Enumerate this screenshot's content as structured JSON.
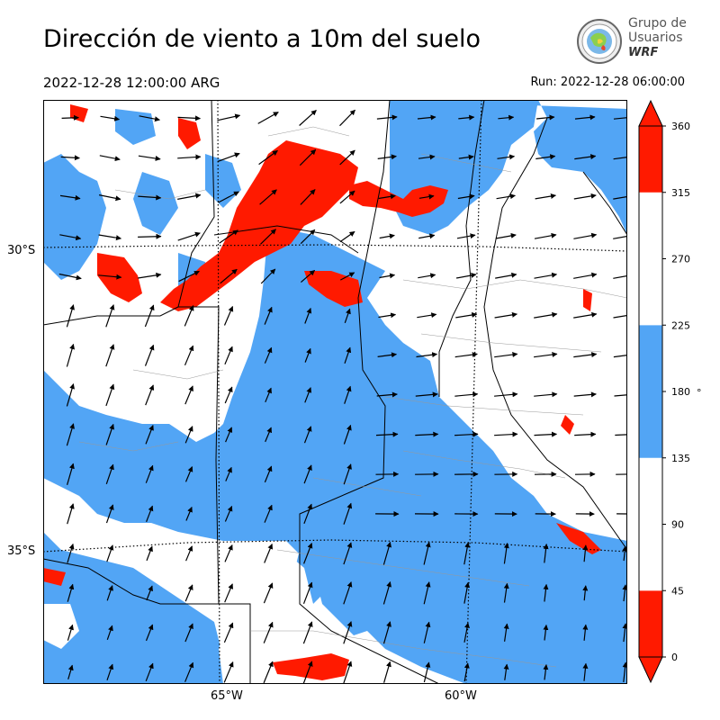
{
  "header": {
    "title": "Dirección de viento a 10m del suelo",
    "valid_time": "2022-12-28 12:00:00 ARG",
    "run_time": "Run: 2022-12-28 06:00:00"
  },
  "logo": {
    "line1": "Grupo de",
    "line2": "Usuarios",
    "line3": "WRF",
    "icon": "globe-seal-icon"
  },
  "map": {
    "lat_labels": [
      "30°S",
      "35°S"
    ],
    "lon_labels": [
      "65°W",
      "60°W"
    ]
  },
  "colorbar": {
    "unit": "°",
    "ticks": [
      "360",
      "315",
      "270",
      "225",
      "180",
      "135",
      "90",
      "45",
      "0"
    ],
    "bands": [
      {
        "from": 0,
        "to": 45,
        "color": "#ff1a00"
      },
      {
        "from": 45,
        "to": 135,
        "color": "#ffffff"
      },
      {
        "from": 135,
        "to": 225,
        "color": "#52a5f5"
      },
      {
        "from": 225,
        "to": 315,
        "color": "#ffffff"
      },
      {
        "from": 315,
        "to": 360,
        "color": "#ff1a00"
      }
    ],
    "extend": "both"
  },
  "colors": {
    "red": "#ff1a00",
    "blue": "#52a5f5",
    "white": "#ffffff"
  }
}
